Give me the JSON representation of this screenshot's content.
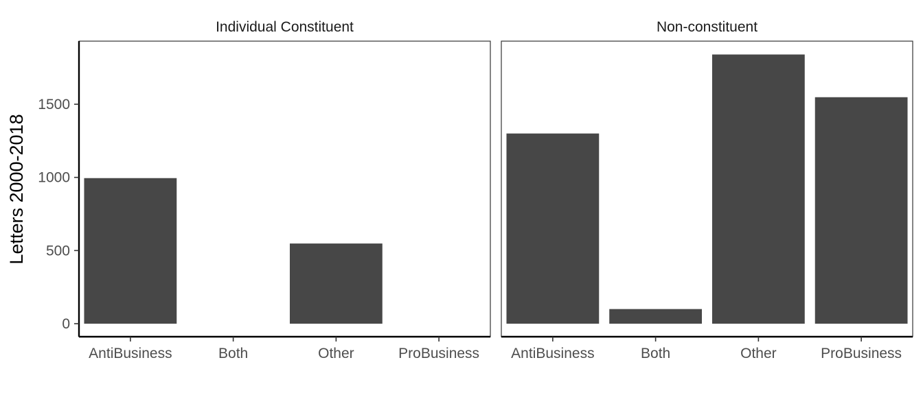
{
  "chart_data": {
    "type": "bar",
    "ylabel": "Letters 2000-2018",
    "xlabel": "",
    "ylim": [
      0,
      1900
    ],
    "yticks": [
      0,
      500,
      1000,
      1500
    ],
    "categories": [
      "AntiBusiness",
      "Both",
      "Other",
      "ProBusiness"
    ],
    "bar_color": "#474747",
    "grid": false,
    "panels": [
      {
        "title": "Individual Constituent",
        "values": [
          995,
          0,
          548,
          0
        ]
      },
      {
        "title": "Non-constituent",
        "values": [
          1300,
          100,
          1840,
          1548
        ]
      }
    ]
  }
}
